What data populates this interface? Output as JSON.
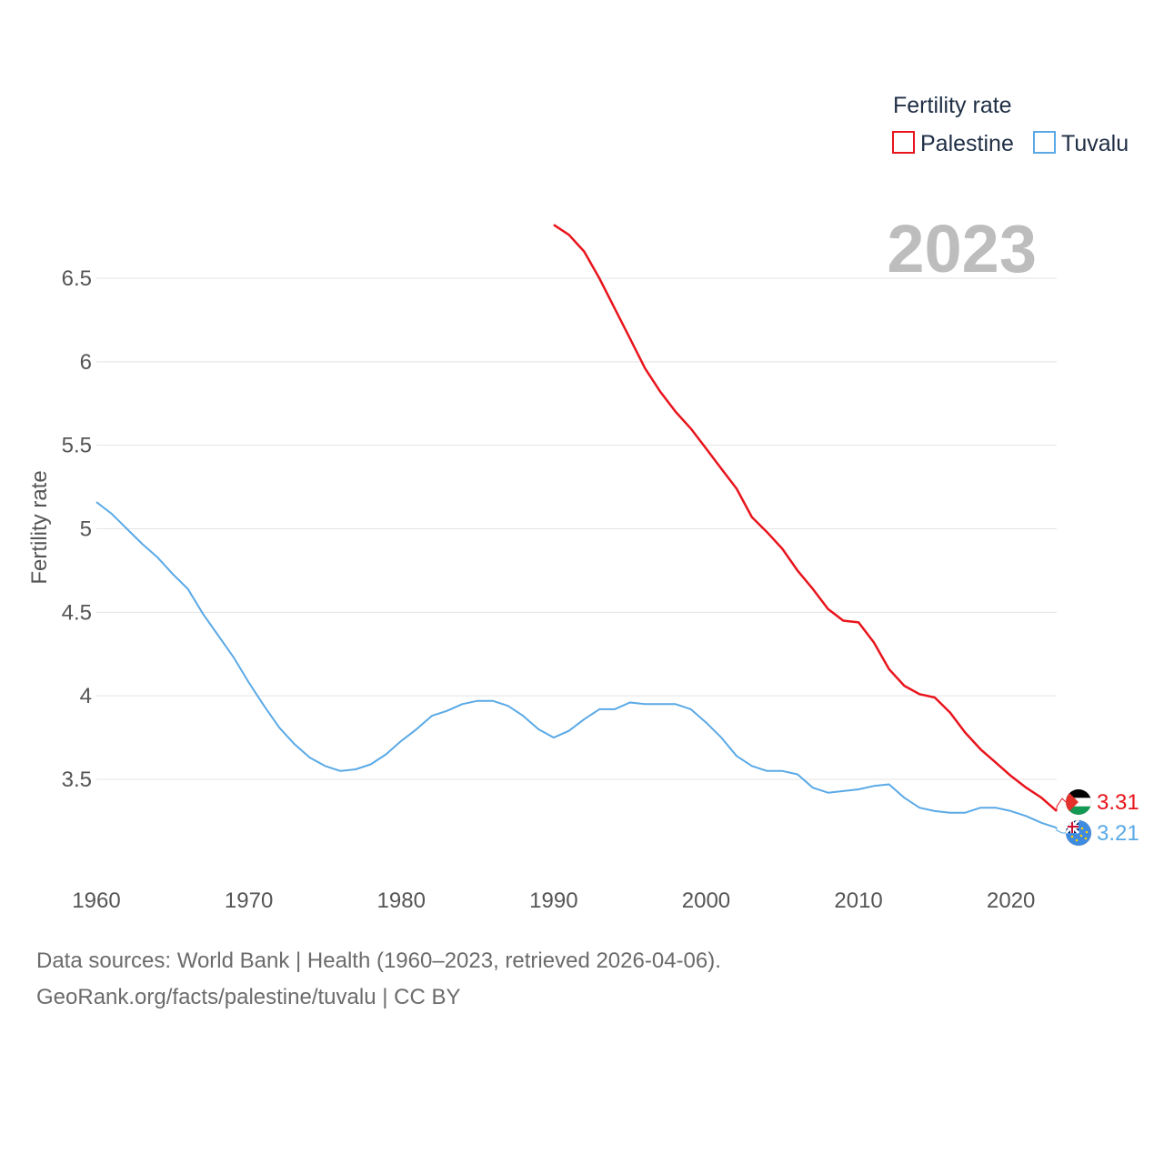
{
  "chart_data": {
    "type": "line",
    "title": "",
    "legend_title": "Fertility rate",
    "legend_position": "top-right",
    "ylabel": "Fertility rate",
    "xlabel": "",
    "year_label": "2023",
    "xlim": [
      1960,
      2023
    ],
    "ylim": [
      3.0,
      6.75
    ],
    "x_ticks": [
      1960,
      1970,
      1980,
      1990,
      2000,
      2010,
      2020
    ],
    "y_ticks": [
      3.5,
      4,
      4.5,
      5,
      5.5,
      6,
      6.5
    ],
    "series": [
      {
        "name": "Palestine",
        "color": "#e8141c",
        "end_label": "3.31",
        "flag": "palestine-flag",
        "x": [
          1990,
          1991,
          1992,
          1993,
          1994,
          1995,
          1996,
          1997,
          1998,
          1999,
          2000,
          2001,
          2002,
          2003,
          2004,
          2005,
          2006,
          2007,
          2008,
          2009,
          2010,
          2011,
          2012,
          2013,
          2014,
          2015,
          2016,
          2017,
          2018,
          2019,
          2020,
          2021,
          2022,
          2023
        ],
        "values": [
          6.82,
          6.76,
          6.66,
          6.5,
          6.32,
          6.14,
          5.96,
          5.82,
          5.7,
          5.6,
          5.48,
          5.36,
          5.24,
          5.07,
          4.98,
          4.88,
          4.75,
          4.64,
          4.52,
          4.45,
          4.44,
          4.32,
          4.16,
          4.06,
          4.01,
          3.99,
          3.9,
          3.78,
          3.68,
          3.6,
          3.52,
          3.45,
          3.39,
          3.31
        ]
      },
      {
        "name": "Tuvalu",
        "color": "#5aa9e6",
        "end_label": "3.21",
        "flag": "tuvalu-flag",
        "x": [
          1960,
          1961,
          1962,
          1963,
          1964,
          1965,
          1966,
          1967,
          1968,
          1969,
          1970,
          1971,
          1972,
          1973,
          1974,
          1975,
          1976,
          1977,
          1978,
          1979,
          1980,
          1981,
          1982,
          1983,
          1984,
          1985,
          1986,
          1987,
          1988,
          1989,
          1990,
          1991,
          1992,
          1993,
          1994,
          1995,
          1996,
          1997,
          1998,
          1999,
          2000,
          2001,
          2002,
          2003,
          2004,
          2005,
          2006,
          2007,
          2008,
          2009,
          2010,
          2011,
          2012,
          2013,
          2014,
          2015,
          2016,
          2017,
          2018,
          2019,
          2020,
          2021,
          2022,
          2023
        ],
        "values": [
          5.16,
          5.09,
          5.0,
          4.91,
          4.83,
          4.73,
          4.64,
          4.49,
          4.36,
          4.23,
          4.08,
          3.94,
          3.81,
          3.71,
          3.63,
          3.58,
          3.55,
          3.56,
          3.59,
          3.65,
          3.73,
          3.8,
          3.88,
          3.91,
          3.95,
          3.97,
          3.97,
          3.94,
          3.88,
          3.8,
          3.75,
          3.79,
          3.86,
          3.92,
          3.92,
          3.96,
          3.95,
          3.95,
          3.95,
          3.92,
          3.84,
          3.75,
          3.64,
          3.58,
          3.55,
          3.55,
          3.53,
          3.45,
          3.42,
          3.43,
          3.44,
          3.46,
          3.47,
          3.39,
          3.33,
          3.31,
          3.3,
          3.3,
          3.33,
          3.33,
          3.31,
          3.28,
          3.24,
          3.21
        ]
      }
    ]
  },
  "footer": {
    "line1": "Data sources: World Bank | Health (1960–2023, retrieved 2026-04-06).",
    "line2": "GeoRank.org/facts/palestine/tuvalu | CC BY"
  }
}
